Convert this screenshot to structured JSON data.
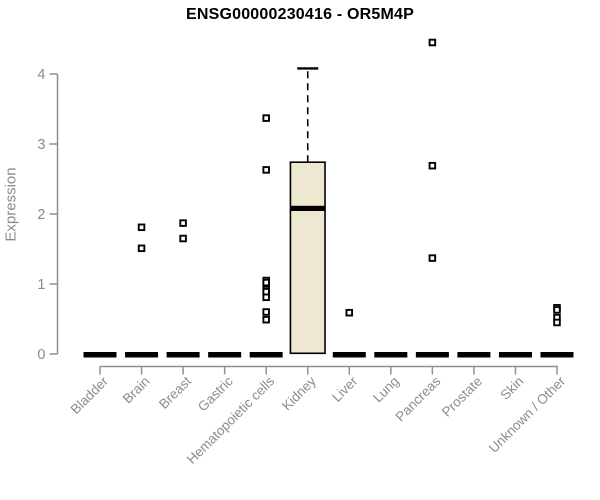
{
  "chart_data": {
    "type": "box",
    "title": "ENSG00000230416 - OR5M4P",
    "ylabel": "Expression",
    "xlabel": "",
    "ylim": [
      0,
      4
    ],
    "yticks": [
      0,
      1,
      2,
      3,
      4
    ],
    "grid": false,
    "legend": "none",
    "categories": [
      "Bladder",
      "Brain",
      "Breast",
      "Gastric",
      "Hematopoietic cells",
      "Kidney",
      "Liver",
      "Lung",
      "Pancreas",
      "Prostate",
      "Skin",
      "Unknown / Other"
    ],
    "boxes": [
      {
        "category": "Bladder",
        "q1": 0,
        "median": 0,
        "q3": 0,
        "whisker_low": 0,
        "whisker_high": 0
      },
      {
        "category": "Brain",
        "q1": 0,
        "median": 0,
        "q3": 0,
        "whisker_low": 0,
        "whisker_high": 0
      },
      {
        "category": "Breast",
        "q1": 0,
        "median": 0,
        "q3": 0,
        "whisker_low": 0,
        "whisker_high": 0
      },
      {
        "category": "Gastric",
        "q1": 0,
        "median": 0,
        "q3": 0,
        "whisker_low": 0,
        "whisker_high": 0
      },
      {
        "category": "Hematopoietic cells",
        "q1": 0,
        "median": 0,
        "q3": 0,
        "whisker_low": 0,
        "whisker_high": 0
      },
      {
        "category": "Kidney",
        "q1": 0.01,
        "median": 2.08,
        "q3": 2.74,
        "whisker_low": 0.01,
        "whisker_high": 4.08
      },
      {
        "category": "Liver",
        "q1": 0,
        "median": 0,
        "q3": 0,
        "whisker_low": 0,
        "whisker_high": 0
      },
      {
        "category": "Lung",
        "q1": 0,
        "median": 0,
        "q3": 0,
        "whisker_low": 0,
        "whisker_high": 0
      },
      {
        "category": "Pancreas",
        "q1": 0,
        "median": 0,
        "q3": 0,
        "whisker_low": 0,
        "whisker_high": 0
      },
      {
        "category": "Prostate",
        "q1": 0,
        "median": 0,
        "q3": 0,
        "whisker_low": 0,
        "whisker_high": 0
      },
      {
        "category": "Skin",
        "q1": 0,
        "median": 0,
        "q3": 0,
        "whisker_low": 0,
        "whisker_high": 0
      },
      {
        "category": "Unknown / Other",
        "q1": 0,
        "median": 0,
        "q3": 0,
        "whisker_low": 0,
        "whisker_high": 0
      }
    ],
    "outliers": [
      {
        "category": "Bladder",
        "values": []
      },
      {
        "category": "Brain",
        "values": [
          1.81,
          1.51
        ]
      },
      {
        "category": "Breast",
        "values": [
          1.87,
          1.65
        ]
      },
      {
        "category": "Gastric",
        "values": []
      },
      {
        "category": "Hematopoietic cells",
        "values": [
          3.37,
          2.63,
          1.05,
          1.02,
          0.92,
          0.89,
          0.81,
          0.6,
          0.49
        ]
      },
      {
        "category": "Kidney",
        "values": []
      },
      {
        "category": "Liver",
        "values": [
          0.59
        ]
      },
      {
        "category": "Lung",
        "values": []
      },
      {
        "category": "Pancreas",
        "values": [
          4.45,
          2.69,
          1.37
        ]
      },
      {
        "category": "Prostate",
        "values": []
      },
      {
        "category": "Skin",
        "values": []
      },
      {
        "category": "Unknown / Other",
        "values": [
          0.66,
          0.63,
          0.52,
          0.45
        ]
      }
    ],
    "colors": {
      "box_fill": "#ede8cf",
      "box_stroke": "#000000",
      "median": "#000000",
      "outlier_stroke": "#000000",
      "outlier_fill": "#ffffff",
      "axis": "#909090",
      "tick_label": "#8c8c8c",
      "title": "#000000",
      "background": "#ffffff"
    }
  }
}
